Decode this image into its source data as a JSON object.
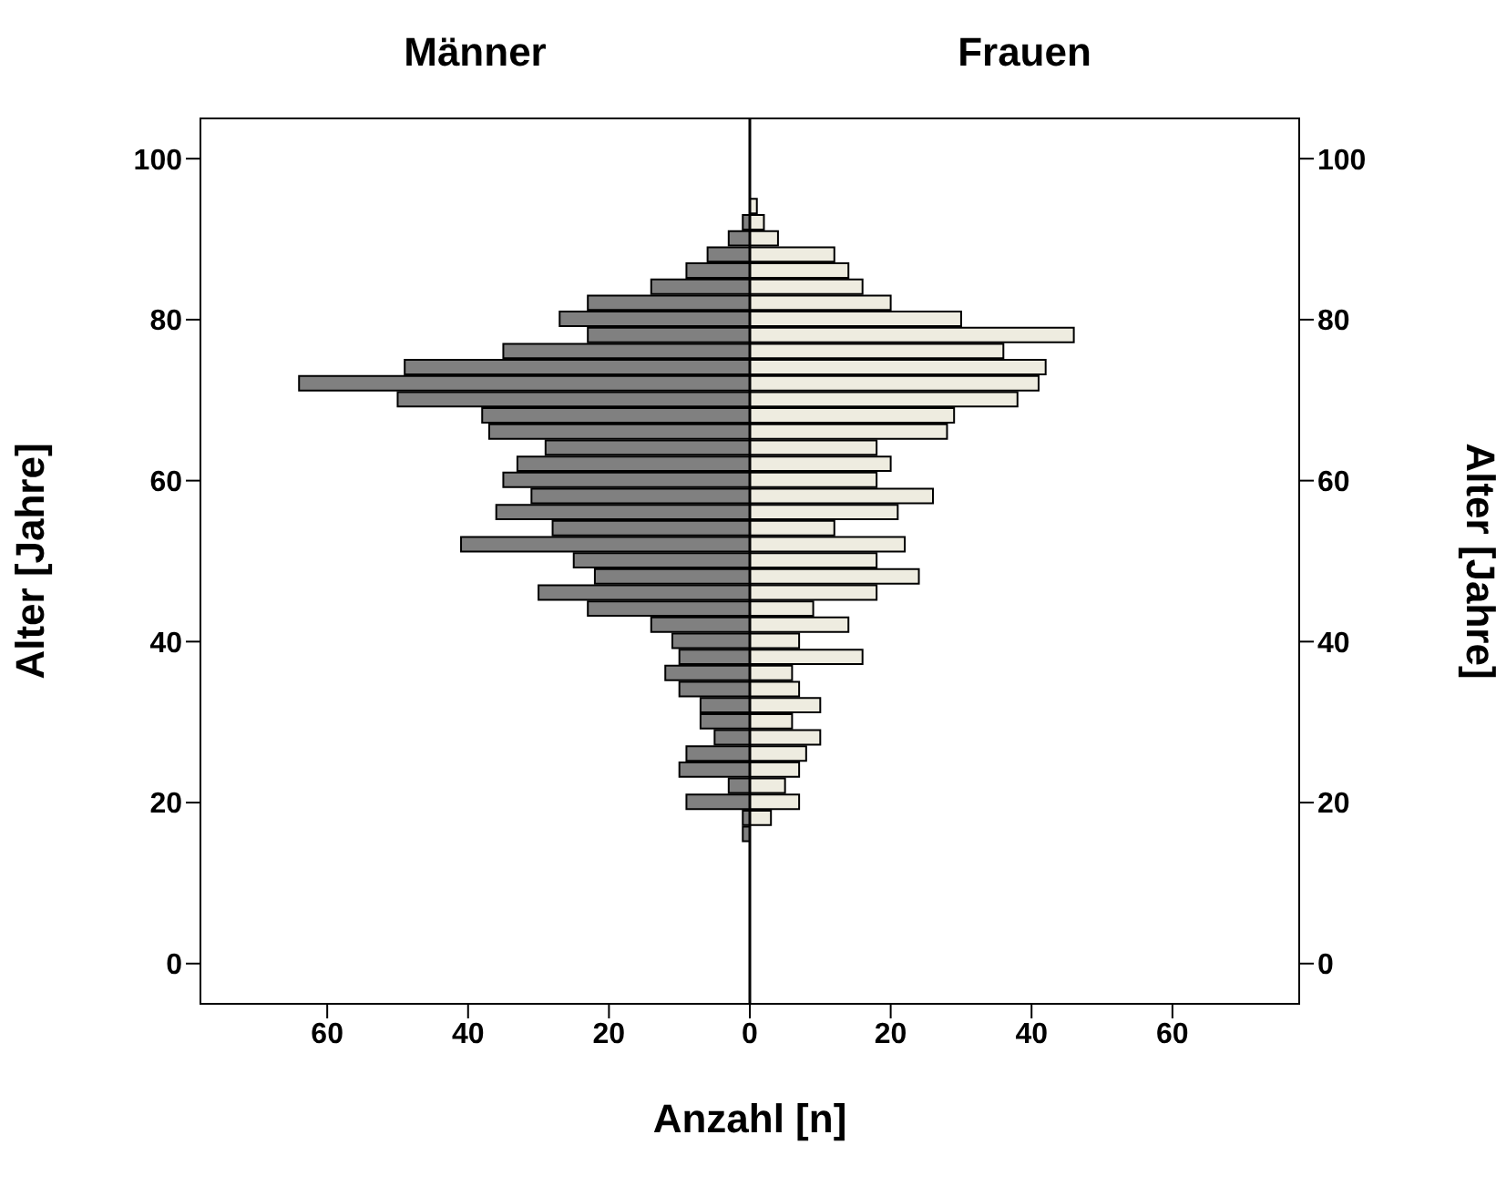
{
  "chart_data": {
    "type": "bar",
    "orientation": "horizontal",
    "stacked": true,
    "xlabel": "Anzahl [n]",
    "ylabel": "Alter [Jahre]",
    "y2label": "Alter [Jahre]",
    "x": [
      16,
      18,
      20,
      22,
      24,
      26,
      28,
      30,
      32,
      34,
      36,
      38,
      40,
      42,
      44,
      46,
      48,
      50,
      52,
      54,
      56,
      58,
      60,
      62,
      64,
      66,
      68,
      70,
      72,
      74,
      76,
      78,
      80,
      82,
      84,
      86,
      88,
      90,
      92,
      94
    ],
    "series": [
      {
        "color": "#808080",
        "values": [
          -1,
          -1,
          -9,
          -3,
          -10,
          -9,
          -5,
          -7,
          -7,
          -10,
          -12,
          -10,
          -11,
          -14,
          -23,
          -30,
          -22,
          -25,
          -41,
          -28,
          -36,
          -31,
          -35,
          -33,
          -29,
          -37,
          -38,
          -50,
          -64,
          -49,
          -35,
          -23,
          -27,
          -23,
          -14,
          -9,
          -6,
          -3,
          -1,
          0
        ]
      },
      {
        "color": "#eeece0",
        "values": [
          0,
          3,
          7,
          5,
          7,
          8,
          10,
          6,
          10,
          7,
          6,
          16,
          7,
          14,
          9,
          18,
          24,
          18,
          22,
          12,
          21,
          26,
          18,
          20,
          18,
          28,
          29,
          38,
          41,
          42,
          36,
          46,
          30,
          20,
          16,
          14,
          12,
          4,
          2,
          1
        ]
      }
    ],
    "xlim": [
      -78,
      78
    ],
    "xticks": [
      {
        "value": -60,
        "label": "60"
      },
      {
        "value": -40,
        "label": "40"
      },
      {
        "value": -20,
        "label": "20"
      },
      0,
      20,
      40,
      60
    ],
    "ylim": [
      -5,
      105
    ],
    "yticks": [
      0,
      20,
      40,
      60,
      80,
      100
    ],
    "y2lim": [
      -5,
      105
    ],
    "y2ticks": [
      0,
      20,
      40,
      60,
      80,
      100
    ],
    "ref_lines": [
      {
        "axis": "x",
        "value": 0
      }
    ],
    "annotations": [
      "Männer",
      "Frauen"
    ],
    "grid": false
  }
}
